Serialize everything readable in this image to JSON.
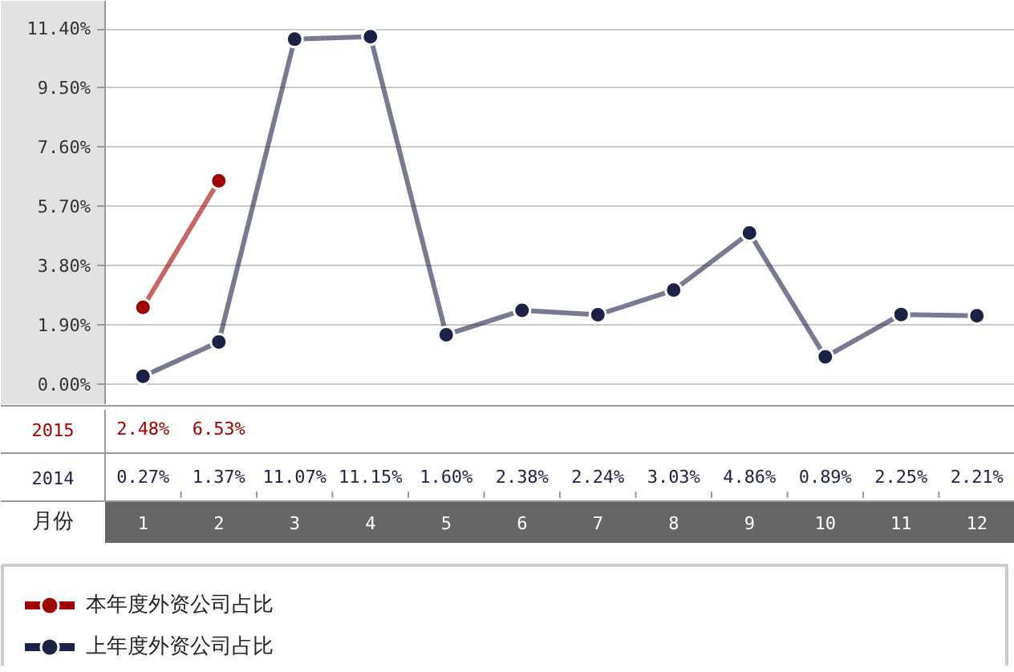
{
  "chart_data": {
    "type": "line",
    "xlabel": "月份",
    "categories": [
      "1",
      "2",
      "3",
      "4",
      "5",
      "6",
      "7",
      "8",
      "9",
      "10",
      "11",
      "12"
    ],
    "series": [
      {
        "name": "本年度外资公司占比",
        "color": "#a00000",
        "values": [
          2.48,
          6.53,
          null,
          null,
          null,
          null,
          null,
          null,
          null,
          null,
          null,
          null
        ],
        "value_labels": [
          "2.48%",
          "6.53%",
          null,
          null,
          null,
          null,
          null,
          null,
          null,
          null,
          null,
          null
        ]
      },
      {
        "name": "上年度外资公司占比",
        "color": "#1c2146",
        "values": [
          0.27,
          1.37,
          11.07,
          11.15,
          1.6,
          2.38,
          2.24,
          3.03,
          4.86,
          0.89,
          2.25,
          2.21
        ],
        "value_labels": [
          "0.27%",
          "1.37%",
          "11.07%",
          "11.15%",
          "1.60%",
          "2.38%",
          "2.24%",
          "3.03%",
          "4.86%",
          "0.89%",
          "2.25%",
          "2.21%"
        ]
      }
    ],
    "ylim": [
      -0.65,
      12.3
    ],
    "yticks": [
      {
        "value": 0,
        "label": "0.00%"
      },
      {
        "value": 1.9,
        "label": "1.90%"
      },
      {
        "value": 3.8,
        "label": "3.80%"
      },
      {
        "value": 5.7,
        "label": "5.70%"
      },
      {
        "value": 7.6,
        "label": "7.60%"
      },
      {
        "value": 9.5,
        "label": "9.50%"
      },
      {
        "value": 11.4,
        "label": "11.40%"
      }
    ],
    "grid": "y",
    "legend": "bottom",
    "marker": "circle",
    "line_style": "solid",
    "annotations": [
      "2015",
      "2014"
    ]
  }
}
